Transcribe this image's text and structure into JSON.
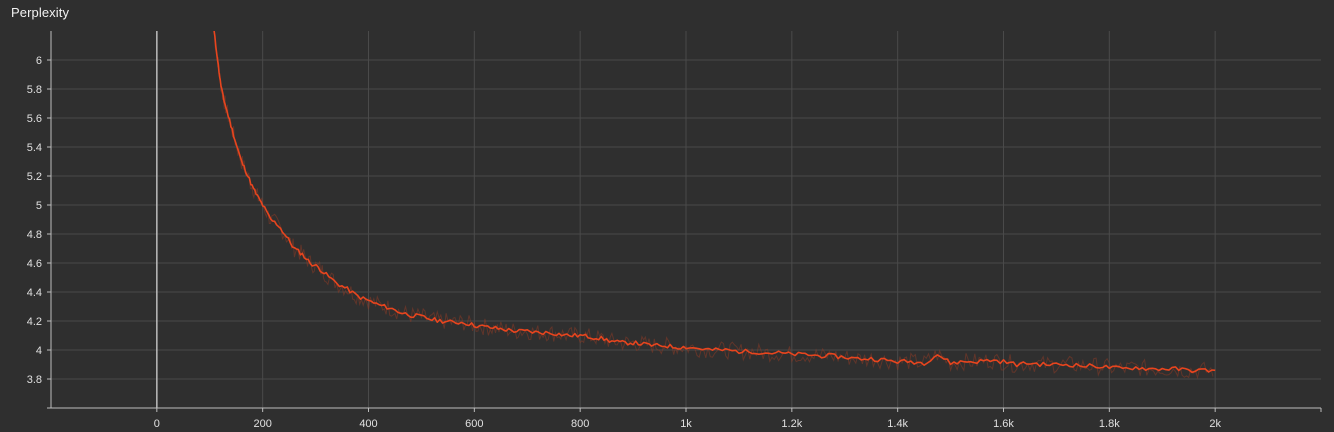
{
  "panel": {
    "title": "Perplexity"
  },
  "colors": {
    "background": "#2f2f2f",
    "grid": "#4a4a4a",
    "axis": "#bdbdbd",
    "zero_line": "#bdbdbd",
    "smoothed_series": "#e8451e",
    "raw_series": "#8a3a26"
  },
  "chart_data": {
    "type": "line",
    "title": "Perplexity",
    "xlabel": "",
    "ylabel": "",
    "xlim": [
      -200,
      2200
    ],
    "ylim": [
      3.6,
      6.2
    ],
    "x_ticks": [
      {
        "value": 0,
        "label": "0"
      },
      {
        "value": 200,
        "label": "200"
      },
      {
        "value": 400,
        "label": "400"
      },
      {
        "value": 600,
        "label": "600"
      },
      {
        "value": 800,
        "label": "800"
      },
      {
        "value": 1000,
        "label": "1k"
      },
      {
        "value": 1200,
        "label": "1.2k"
      },
      {
        "value": 1400,
        "label": "1.4k"
      },
      {
        "value": 1600,
        "label": "1.6k"
      },
      {
        "value": 1800,
        "label": "1.8k"
      },
      {
        "value": 2000,
        "label": "2k"
      }
    ],
    "y_ticks": [
      {
        "value": 3.8,
        "label": "3.8"
      },
      {
        "value": 4.0,
        "label": "4"
      },
      {
        "value": 4.2,
        "label": "4.2"
      },
      {
        "value": 4.4,
        "label": "4.4"
      },
      {
        "value": 4.6,
        "label": "4.6"
      },
      {
        "value": 4.8,
        "label": "4.8"
      },
      {
        "value": 5.0,
        "label": "5"
      },
      {
        "value": 5.2,
        "label": "5.2"
      },
      {
        "value": 5.4,
        "label": "5.4"
      },
      {
        "value": 5.6,
        "label": "5.6"
      },
      {
        "value": 5.8,
        "label": "5.8"
      },
      {
        "value": 6.0,
        "label": "6"
      }
    ],
    "grid": true,
    "legend": "none",
    "series": [
      {
        "x": [
          108,
          115,
          120,
          125,
          130,
          140,
          150,
          160,
          170,
          180,
          190,
          200,
          215,
          230,
          245,
          260,
          275,
          290,
          305,
          320,
          340,
          360,
          380,
          400,
          420,
          440,
          460,
          480,
          500,
          520,
          540,
          560,
          580,
          600,
          620,
          640,
          660,
          680,
          700,
          720,
          740,
          760,
          780,
          800,
          820,
          840,
          860,
          880,
          900,
          920,
          940,
          960,
          980,
          1000,
          1025,
          1050,
          1075,
          1100,
          1125,
          1150,
          1175,
          1200,
          1225,
          1250,
          1275,
          1300,
          1325,
          1350,
          1375,
          1400,
          1425,
          1450,
          1475,
          1500,
          1525,
          1550,
          1575,
          1600,
          1625,
          1650,
          1675,
          1700,
          1725,
          1750,
          1775,
          1800,
          1825,
          1850,
          1875,
          1900,
          1925,
          1950,
          1975,
          2000
        ],
        "y": [
          6.2,
          6.0,
          5.85,
          5.75,
          5.68,
          5.55,
          5.42,
          5.3,
          5.22,
          5.13,
          5.06,
          5.0,
          4.9,
          4.86,
          4.78,
          4.7,
          4.66,
          4.6,
          4.57,
          4.52,
          4.46,
          4.42,
          4.37,
          4.34,
          4.31,
          4.29,
          4.26,
          4.24,
          4.23,
          4.21,
          4.2,
          4.19,
          4.19,
          4.17,
          4.16,
          4.15,
          4.14,
          4.13,
          4.13,
          4.12,
          4.12,
          4.11,
          4.1,
          4.1,
          4.09,
          4.08,
          4.06,
          4.05,
          4.05,
          4.04,
          4.03,
          4.03,
          4.02,
          4.02,
          4.01,
          4.0,
          4.0,
          3.99,
          3.99,
          3.98,
          3.98,
          3.97,
          3.97,
          3.96,
          3.96,
          3.95,
          3.94,
          3.94,
          3.93,
          3.92,
          3.92,
          3.91,
          3.97,
          3.91,
          3.92,
          3.92,
          3.93,
          3.92,
          3.9,
          3.91,
          3.9,
          3.9,
          3.9,
          3.89,
          3.89,
          3.88,
          3.87,
          3.88,
          3.87,
          3.87,
          3.87,
          3.86,
          3.86,
          3.86
        ]
      }
    ]
  }
}
